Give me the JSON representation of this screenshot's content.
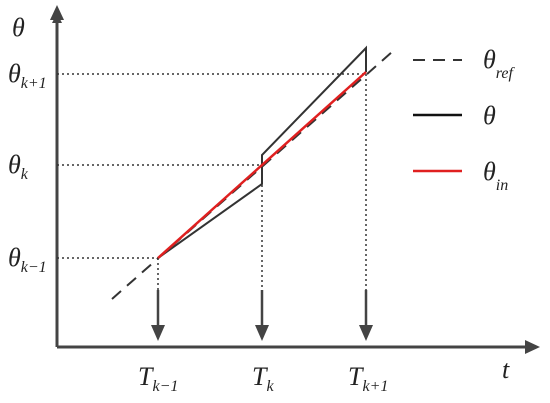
{
  "axes": {
    "y_label": "θ",
    "x_label": "t"
  },
  "y_marks": [
    {
      "symbol": "θ",
      "subscript": "k+1"
    },
    {
      "symbol": "θ",
      "subscript": "k"
    },
    {
      "symbol": "θ",
      "subscript": "k−1"
    }
  ],
  "x_marks": [
    {
      "symbol": "T",
      "subscript": "k−1"
    },
    {
      "symbol": "T",
      "subscript": "k"
    },
    {
      "symbol": "T",
      "subscript": "k+1"
    }
  ],
  "legend": [
    {
      "symbol": "θ",
      "subscript": "ref"
    },
    {
      "symbol": "θ",
      "subscript": ""
    },
    {
      "symbol": "θ",
      "subscript": "in"
    }
  ]
}
